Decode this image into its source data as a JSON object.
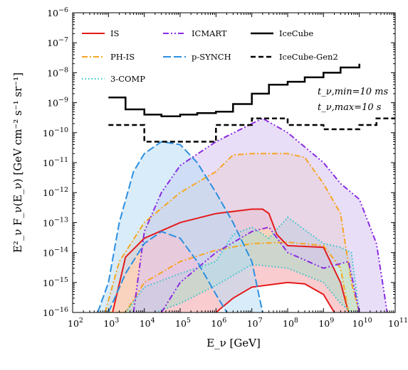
{
  "chart_data": {
    "type": "area",
    "xlabel": "E_ν [GeV]",
    "ylabel": "E²_ν F_ν(E_ν) [GeV cm⁻² s⁻¹ sr⁻¹]",
    "xscale": "log",
    "yscale": "log",
    "xlim": [
      100,
      100000000000
    ],
    "ylim": [
      1e-16,
      1e-06
    ],
    "grid": false,
    "legend_placement": "top-left",
    "x_ticks": [
      "10^2",
      "10^3",
      "10^4",
      "10^5",
      "10^6",
      "10^7",
      "10^8",
      "10^9",
      "10^10",
      "10^11"
    ],
    "y_ticks": [
      "10^-16",
      "10^-15",
      "10^-14",
      "10^-13",
      "10^-12",
      "10^-11",
      "10^-10",
      "10^-9",
      "10^-8",
      "10^-7",
      "10^-6"
    ],
    "annotations": [
      "t_ν,min=10 ms",
      "t_ν,max=10 s"
    ],
    "series": [
      {
        "name": "IS",
        "color": "#e41a1c",
        "linestyle": "solid",
        "fill": "#f4a3a8",
        "upper": [
          [
            1300,
            1e-16
          ],
          [
            3000,
            7e-15
          ],
          [
            10000,
            3e-14
          ],
          [
            100000,
            1e-13
          ],
          [
            1000000,
            2e-13
          ],
          [
            10000000,
            2.8e-13
          ],
          [
            20000000,
            2.8e-13
          ],
          [
            30000000,
            2e-13
          ],
          [
            50000000,
            4e-14
          ],
          [
            100000000,
            1.7e-14
          ],
          [
            300000000,
            1.6e-14
          ],
          [
            1000000000,
            1.5e-14
          ],
          [
            3000000000,
            1e-15
          ],
          [
            5000000000,
            1e-16
          ]
        ],
        "lower": [
          [
            1000000,
            1e-16
          ],
          [
            3000000,
            3e-16
          ],
          [
            10000000,
            7e-16
          ],
          [
            100000000,
            1e-15
          ],
          [
            300000000,
            9e-16
          ],
          [
            1000000000,
            4e-16
          ],
          [
            2000000000,
            1e-16
          ]
        ]
      },
      {
        "name": "PH-IS",
        "color": "#f5a623",
        "linestyle": "dashdot",
        "fill": "#fcd9b0",
        "upper": [
          [
            800,
            1e-16
          ],
          [
            2000,
            5e-15
          ],
          [
            10000,
            1e-13
          ],
          [
            100000,
            1e-12
          ],
          [
            1000000,
            5e-12
          ],
          [
            3000000,
            1.8e-11
          ],
          [
            10000000,
            2e-11
          ],
          [
            100000000,
            2e-11
          ],
          [
            300000000,
            1.5e-11
          ],
          [
            1000000000,
            2e-12
          ],
          [
            3000000000,
            2e-13
          ],
          [
            6000000000,
            1e-15
          ],
          [
            10000000000,
            1e-16
          ]
        ],
        "lower": [
          [
            1000,
            1e-16
          ],
          [
            3000,
            1e-16
          ],
          [
            10000,
            1e-15
          ],
          [
            100000,
            5e-15
          ],
          [
            1000000,
            1.2e-14
          ],
          [
            10000000,
            2e-14
          ],
          [
            100000000,
            2.2e-14
          ],
          [
            1000000000,
            1.7e-14
          ],
          [
            3000000000,
            3e-15
          ],
          [
            5000000000,
            1e-16
          ]
        ]
      },
      {
        "name": "3-COMP",
        "color": "#2ec4c9",
        "linestyle": "dotted",
        "fill": "#a9dccb",
        "upper": [
          [
            3000,
            1e-16
          ],
          [
            10000,
            7e-16
          ],
          [
            100000,
            2e-15
          ],
          [
            1000000,
            5e-15
          ],
          [
            3000000,
            4e-14
          ],
          [
            10000000,
            7e-14
          ],
          [
            30000000,
            3e-14
          ],
          [
            100000000,
            1.5e-13
          ],
          [
            1000000000,
            2e-14
          ],
          [
            3000000000,
            1.5e-14
          ],
          [
            6000000000,
            1e-14
          ],
          [
            10000000000,
            1e-16
          ]
        ],
        "lower": [
          [
            20000,
            1e-16
          ],
          [
            100000,
            2e-16
          ],
          [
            1000000,
            8e-16
          ],
          [
            10000000,
            4e-15
          ],
          [
            100000000,
            3e-15
          ],
          [
            1000000000,
            1e-15
          ],
          [
            3000000000,
            2e-16
          ],
          [
            6000000000,
            1e-16
          ]
        ]
      },
      {
        "name": "ICMART",
        "color": "#8a2be2",
        "linestyle": "dashdotdot",
        "fill": "#d7c3f2",
        "upper": [
          [
            5000,
            1e-16
          ],
          [
            10000,
            5e-14
          ],
          [
            30000,
            1e-12
          ],
          [
            100000,
            8e-12
          ],
          [
            1000000,
            5e-11
          ],
          [
            10000000,
            2e-10
          ],
          [
            20000000,
            3e-10
          ],
          [
            100000000,
            1e-10
          ],
          [
            1000000000,
            1e-11
          ],
          [
            3000000000,
            2e-12
          ],
          [
            10000000000,
            6e-13
          ],
          [
            30000000000,
            2e-14
          ],
          [
            60000000000,
            1e-16
          ]
        ],
        "lower": [
          [
            30000,
            1e-16
          ],
          [
            100000,
            1e-15
          ],
          [
            1000000,
            1e-14
          ],
          [
            10000000,
            5e-14
          ],
          [
            30000000,
            7e-14
          ],
          [
            100000000,
            1e-14
          ],
          [
            1000000000,
            3e-15
          ],
          [
            5000000000,
            5e-15
          ],
          [
            10000000000,
            1e-16
          ]
        ]
      },
      {
        "name": "p-SYNCH",
        "color": "#2c8fe0",
        "linestyle": "longdash",
        "fill": "#b9dcf6",
        "upper": [
          [
            500,
            1e-16
          ],
          [
            1000,
            1e-15
          ],
          [
            2000,
            1e-13
          ],
          [
            5000,
            5e-12
          ],
          [
            10000,
            2e-11
          ],
          [
            30000,
            5e-11
          ],
          [
            100000,
            4e-11
          ],
          [
            300000,
            1e-11
          ],
          [
            1000000,
            1e-12
          ],
          [
            3000000,
            1e-13
          ],
          [
            10000000,
            5e-15
          ],
          [
            20000000,
            1e-16
          ]
        ],
        "lower": [
          [
            1000,
            1e-16
          ],
          [
            3000,
            2e-15
          ],
          [
            10000,
            2e-14
          ],
          [
            30000,
            5e-14
          ],
          [
            100000,
            3e-14
          ],
          [
            300000,
            5e-15
          ],
          [
            1000000,
            4e-16
          ],
          [
            2000000,
            1e-16
          ]
        ]
      },
      {
        "name": "IceCube",
        "color": "#000000",
        "linestyle": "solid",
        "steps": [
          [
            1000,
            1.5e-09
          ],
          [
            3000,
            6e-10
          ],
          [
            10000,
            4e-10
          ],
          [
            30000,
            3.5e-10
          ],
          [
            100000,
            4e-10
          ],
          [
            300000,
            4.5e-10
          ],
          [
            1000000,
            5e-10
          ],
          [
            3000000,
            9e-10
          ],
          [
            10000000,
            2e-09
          ],
          [
            30000000,
            4e-09
          ],
          [
            100000000,
            5e-09
          ],
          [
            300000000,
            7e-09
          ],
          [
            1000000000,
            1e-08
          ],
          [
            3000000000,
            1.5e-08
          ],
          [
            10000000000,
            2e-08
          ]
        ]
      },
      {
        "name": "IceCube-Gen2",
        "color": "#000000",
        "linestyle": "dashed",
        "steps": [
          [
            1000,
            1.8e-10
          ],
          [
            3000,
            1.8e-10
          ],
          [
            10000,
            5e-11
          ],
          [
            100000,
            5e-11
          ],
          [
            1000000,
            1.8e-10
          ],
          [
            10000000,
            3e-10
          ],
          [
            100000000,
            1.8e-10
          ],
          [
            1000000000,
            1.3e-10
          ],
          [
            10000000000,
            1.8e-10
          ],
          [
            30000000000,
            3e-10
          ],
          [
            100000000000,
            3e-10
          ]
        ]
      }
    ]
  }
}
